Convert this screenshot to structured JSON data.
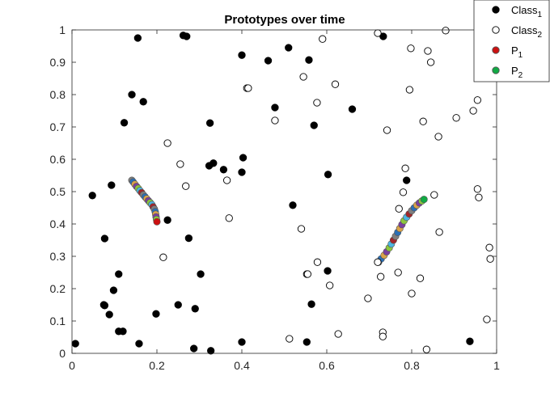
{
  "chart_data": {
    "type": "scatter",
    "title": "Prototypes over time",
    "xlabel": "",
    "ylabel": "",
    "xlim": [
      0,
      1
    ],
    "ylim": [
      0,
      1
    ],
    "xticks": [
      "0",
      "0.2",
      "0.4",
      "0.6",
      "0.8",
      "1"
    ],
    "yticks": [
      "0",
      "0.1",
      "0.2",
      "0.3",
      "0.4",
      "0.5",
      "0.6",
      "0.7",
      "0.8",
      "0.9",
      "1"
    ],
    "grid": false,
    "legend_position": "top-right",
    "series": [
      {
        "name": "Class",
        "name_sub": "1",
        "marker": "filled-circle",
        "color": "#000000",
        "points": [
          [
            0.155,
            0.975
          ],
          [
            0.262,
            0.983
          ],
          [
            0.27,
            0.98
          ],
          [
            0.141,
            0.8
          ],
          [
            0.168,
            0.778
          ],
          [
            0.123,
            0.713
          ],
          [
            0.325,
            0.712
          ],
          [
            0.4,
            0.922
          ],
          [
            0.462,
            0.905
          ],
          [
            0.51,
            0.945
          ],
          [
            0.558,
            0.907
          ],
          [
            0.733,
            0.98
          ],
          [
            0.478,
            0.76
          ],
          [
            0.66,
            0.755
          ],
          [
            0.57,
            0.705
          ],
          [
            0.403,
            0.605
          ],
          [
            0.323,
            0.58
          ],
          [
            0.333,
            0.588
          ],
          [
            0.357,
            0.568
          ],
          [
            0.4,
            0.56
          ],
          [
            0.603,
            0.553
          ],
          [
            0.093,
            0.52
          ],
          [
            0.048,
            0.488
          ],
          [
            0.52,
            0.458
          ],
          [
            0.225,
            0.412
          ],
          [
            0.077,
            0.355
          ],
          [
            0.275,
            0.356
          ],
          [
            0.788,
            0.535
          ],
          [
            0.11,
            0.245
          ],
          [
            0.303,
            0.245
          ],
          [
            0.602,
            0.255
          ],
          [
            0.098,
            0.195
          ],
          [
            0.075,
            0.15
          ],
          [
            0.077,
            0.148
          ],
          [
            0.25,
            0.15
          ],
          [
            0.564,
            0.152
          ],
          [
            0.088,
            0.12
          ],
          [
            0.198,
            0.122
          ],
          [
            0.29,
            0.138
          ],
          [
            0.11,
            0.068
          ],
          [
            0.12,
            0.068
          ],
          [
            0.008,
            0.03
          ],
          [
            0.158,
            0.03
          ],
          [
            0.4,
            0.035
          ],
          [
            0.553,
            0.035
          ],
          [
            0.287,
            0.015
          ],
          [
            0.327,
            0.008
          ],
          [
            0.937,
            0.037
          ]
        ]
      },
      {
        "name": "Class",
        "name_sub": "2",
        "marker": "open-circle",
        "color": "#000000",
        "points": [
          [
            0.72,
            0.99
          ],
          [
            0.59,
            0.972
          ],
          [
            0.88,
            0.998
          ],
          [
            0.798,
            0.943
          ],
          [
            0.838,
            0.935
          ],
          [
            0.845,
            0.9
          ],
          [
            0.412,
            0.82
          ],
          [
            0.415,
            0.82
          ],
          [
            0.545,
            0.855
          ],
          [
            0.62,
            0.832
          ],
          [
            0.795,
            0.815
          ],
          [
            0.577,
            0.775
          ],
          [
            0.955,
            0.783
          ],
          [
            0.945,
            0.75
          ],
          [
            0.905,
            0.728
          ],
          [
            0.827,
            0.717
          ],
          [
            0.478,
            0.72
          ],
          [
            0.742,
            0.69
          ],
          [
            0.863,
            0.67
          ],
          [
            0.225,
            0.65
          ],
          [
            0.255,
            0.585
          ],
          [
            0.785,
            0.572
          ],
          [
            0.365,
            0.535
          ],
          [
            0.268,
            0.517
          ],
          [
            0.955,
            0.508
          ],
          [
            0.78,
            0.498
          ],
          [
            0.853,
            0.49
          ],
          [
            0.958,
            0.482
          ],
          [
            0.37,
            0.418
          ],
          [
            0.77,
            0.447
          ],
          [
            0.54,
            0.385
          ],
          [
            0.865,
            0.375
          ],
          [
            0.983,
            0.327
          ],
          [
            0.985,
            0.292
          ],
          [
            0.215,
            0.297
          ],
          [
            0.72,
            0.282
          ],
          [
            0.578,
            0.282
          ],
          [
            0.553,
            0.245
          ],
          [
            0.555,
            0.245
          ],
          [
            0.727,
            0.237
          ],
          [
            0.768,
            0.25
          ],
          [
            0.82,
            0.232
          ],
          [
            0.607,
            0.21
          ],
          [
            0.8,
            0.185
          ],
          [
            0.697,
            0.17
          ],
          [
            0.977,
            0.105
          ],
          [
            0.627,
            0.06
          ],
          [
            0.732,
            0.065
          ],
          [
            0.732,
            0.052
          ],
          [
            0.512,
            0.045
          ],
          [
            0.835,
            0.012
          ]
        ]
      },
      {
        "name": "P",
        "name_sub": "1",
        "marker": "filled-circle",
        "color": "#cc1111",
        "points": [
          [
            0.141,
            0.535
          ],
          [
            0.144,
            0.53
          ],
          [
            0.148,
            0.523
          ],
          [
            0.152,
            0.516
          ],
          [
            0.156,
            0.51
          ],
          [
            0.16,
            0.503
          ],
          [
            0.164,
            0.497
          ],
          [
            0.168,
            0.49
          ],
          [
            0.172,
            0.484
          ],
          [
            0.176,
            0.478
          ],
          [
            0.18,
            0.472
          ],
          [
            0.184,
            0.466
          ],
          [
            0.188,
            0.46
          ],
          [
            0.191,
            0.453
          ],
          [
            0.194,
            0.446
          ],
          [
            0.196,
            0.438
          ],
          [
            0.197,
            0.43
          ],
          [
            0.198,
            0.422
          ],
          [
            0.199,
            0.414
          ],
          [
            0.2,
            0.407
          ]
        ]
      },
      {
        "name": "P",
        "name_sub": "2",
        "marker": "filled-circle",
        "color": "#11aa44",
        "points": [
          [
            0.722,
            0.282
          ],
          [
            0.728,
            0.292
          ],
          [
            0.735,
            0.303
          ],
          [
            0.741,
            0.314
          ],
          [
            0.747,
            0.326
          ],
          [
            0.752,
            0.338
          ],
          [
            0.757,
            0.35
          ],
          [
            0.762,
            0.362
          ],
          [
            0.767,
            0.374
          ],
          [
            0.772,
            0.386
          ],
          [
            0.777,
            0.398
          ],
          [
            0.782,
            0.41
          ],
          [
            0.788,
            0.421
          ],
          [
            0.794,
            0.431
          ],
          [
            0.8,
            0.441
          ],
          [
            0.806,
            0.45
          ],
          [
            0.812,
            0.458
          ],
          [
            0.818,
            0.465
          ],
          [
            0.824,
            0.471
          ],
          [
            0.829,
            0.476
          ]
        ]
      }
    ]
  }
}
